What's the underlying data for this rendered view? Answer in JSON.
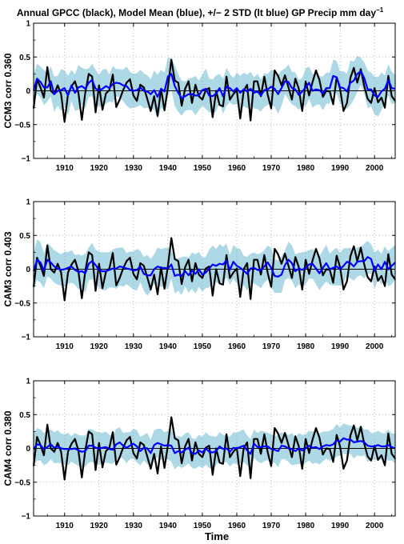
{
  "figure": {
    "title": "Annual GPCC (black), Model Mean (blue), +/− 2 STD (lt blue) GP Precip mm day",
    "title_sup": "−1",
    "xlabel": "Time"
  },
  "colors": {
    "observed": "#000000",
    "model_mean": "#0000ff",
    "spread": "#add8e6",
    "grid": "#a0a0a0",
    "zero_line": "#000000"
  },
  "chart_data": [
    {
      "type": "line",
      "ylabel": "CCM3 corr 0.360",
      "xlim": [
        1901,
        2006
      ],
      "ylim": [
        -1,
        1
      ],
      "xticks": [
        1910,
        1920,
        1930,
        1940,
        1950,
        1960,
        1970,
        1980,
        1990,
        2000
      ],
      "yticks": [
        -1,
        -0.5,
        0,
        0.5,
        1
      ],
      "ytick_labels": [
        "−1",
        "−0.5",
        "0",
        "0.5",
        "1"
      ],
      "grid": true,
      "x_start": 1901,
      "series": [
        {
          "name": "GPCC",
          "values": [
            -0.26,
            0.17,
            0.05,
            -0.1,
            0.35,
            0.0,
            -0.05,
            0.08,
            -0.05,
            -0.46,
            -0.05,
            0.07,
            0.14,
            -0.03,
            -0.43,
            -0.03,
            0.25,
            0.21,
            -0.32,
            0.08,
            -0.28,
            -0.04,
            0.01,
            0.24,
            -0.24,
            -0.13,
            0.01,
            0.12,
            0.17,
            -0.07,
            -0.15,
            0.09,
            0.05,
            -0.12,
            -0.3,
            -0.08,
            -0.37,
            0.03,
            -0.29,
            0.05,
            0.46,
            0.15,
            0.12,
            -0.22,
            0.03,
            0.14,
            -0.18,
            0.09,
            -0.08,
            -0.13,
            0.01,
            0.04,
            -0.39,
            0.0,
            -0.21,
            -0.23,
            0.21,
            -0.13,
            -0.05,
            0.01,
            -0.41,
            0.0,
            0.09,
            -0.44,
            0.14,
            0.14,
            -0.08,
            0.21,
            -0.06,
            -0.26,
            0.3,
            0.22,
            0.08,
            0.23,
            0.05,
            -0.13,
            0.18,
            0.03,
            -0.3,
            0.14,
            -0.07,
            0.13,
            0.3,
            0.16,
            -0.09,
            0.0,
            -0.01,
            -0.2,
            0.2,
            0.03,
            -0.3,
            -0.18,
            0.19,
            0.34,
            0.12,
            0.32,
            0.07,
            -0.12,
            -0.18,
            0.04,
            -0.17,
            -0.1,
            -0.25,
            0.22,
            -0.08,
            -0.15
          ]
        },
        {
          "name": "Model Mean",
          "values": [
            0.01,
            0.18,
            0.13,
            0.05,
            0.05,
            0.14,
            -0.05,
            0.0,
            0.01,
            0.04,
            -0.07,
            0.08,
            -0.03,
            0.05,
            0.07,
            0.03,
            0.12,
            0.16,
            0.03,
            0.01,
            0.03,
            0.07,
            0.04,
            0.1,
            0.12,
            0.11,
            0.08,
            0.07,
            0.01,
            0.0,
            0.01,
            0.05,
            0.0,
            -0.01,
            -0.05,
            0.01,
            -0.09,
            0.03,
            -0.01,
            0.21,
            0.25,
            0.07,
            -0.03,
            -0.11,
            -0.08,
            -0.05,
            -0.05,
            -0.07,
            -0.07,
            0.01,
            0.03,
            -0.07,
            -0.08,
            -0.04,
            0.04,
            -0.08,
            0.06,
            0.04,
            -0.01,
            0.04,
            -0.03,
            0.02,
            -0.01,
            0.03,
            -0.03,
            -0.01,
            -0.07,
            0.01,
            0.02,
            0.06,
            0.03,
            -0.05,
            0.04,
            0.14,
            0.13,
            0.04,
            0.02,
            -0.06,
            -0.01,
            0.05,
            0.12,
            0.0,
            0.02,
            0.01,
            -0.04,
            0.04,
            0.04,
            0.22,
            0.2,
            0.05,
            0.04,
            -0.01,
            0.12,
            0.15,
            0.25,
            0.29,
            0.19,
            0.02,
            0.02,
            -0.07,
            -0.09,
            -0.01,
            0.03,
            0.16,
            0.04,
            0.03
          ]
        }
      ],
      "band_halfwidth": [
        0.23,
        0.22,
        0.23,
        0.26,
        0.21,
        0.22,
        0.26,
        0.22,
        0.31,
        0.26,
        0.29,
        0.23,
        0.27,
        0.33,
        0.27,
        0.29,
        0.21,
        0.24,
        0.28,
        0.23,
        0.28,
        0.26,
        0.2,
        0.27,
        0.2,
        0.21,
        0.23,
        0.29,
        0.27,
        0.25,
        0.25,
        0.26,
        0.26,
        0.24,
        0.22,
        0.29,
        0.33,
        0.28,
        0.28,
        0.28,
        0.23,
        0.3,
        0.28,
        0.26,
        0.22,
        0.23,
        0.24,
        0.29,
        0.22,
        0.23,
        0.3,
        0.25,
        0.25,
        0.27,
        0.21,
        0.26,
        0.28,
        0.21,
        0.2,
        0.23,
        0.25,
        0.25,
        0.25,
        0.25,
        0.23,
        0.26,
        0.24,
        0.25,
        0.23,
        0.25,
        0.27,
        0.29,
        0.26,
        0.19,
        0.26,
        0.24,
        0.25,
        0.22,
        0.2,
        0.28,
        0.24,
        0.25,
        0.23,
        0.21,
        0.25,
        0.23,
        0.23,
        0.24,
        0.24,
        0.24,
        0.25,
        0.26,
        0.33,
        0.28,
        0.27,
        0.2,
        0.23,
        0.28,
        0.25,
        0.28,
        0.29,
        0.28,
        0.2,
        0.23,
        0.24,
        0.21
      ]
    },
    {
      "type": "line",
      "ylabel": "CAM3 corr 0.403",
      "xlim": [
        1901,
        2006
      ],
      "ylim": [
        -1,
        1
      ],
      "xticks": [
        1910,
        1920,
        1930,
        1940,
        1950,
        1960,
        1970,
        1980,
        1990,
        2000
      ],
      "yticks": [
        -1,
        -0.5,
        0,
        0.5,
        1
      ],
      "ytick_labels": [
        "−1",
        "−0.5",
        "0",
        "0.5",
        "1"
      ],
      "grid": true,
      "x_start": 1901,
      "series": [
        {
          "name": "GPCC",
          "values": [
            -0.26,
            0.17,
            0.05,
            -0.1,
            0.35,
            0.0,
            -0.05,
            0.08,
            -0.05,
            -0.46,
            -0.05,
            0.07,
            0.14,
            -0.03,
            -0.43,
            -0.03,
            0.25,
            0.21,
            -0.32,
            0.08,
            -0.28,
            -0.04,
            0.01,
            0.24,
            -0.24,
            -0.13,
            0.01,
            0.12,
            0.17,
            -0.07,
            -0.15,
            0.09,
            0.05,
            -0.12,
            -0.3,
            -0.08,
            -0.37,
            0.03,
            -0.29,
            0.05,
            0.46,
            0.15,
            0.12,
            -0.22,
            0.03,
            0.14,
            -0.18,
            0.09,
            -0.08,
            -0.13,
            0.01,
            0.04,
            -0.39,
            0.0,
            -0.21,
            -0.23,
            0.21,
            -0.13,
            -0.05,
            0.01,
            -0.41,
            0.0,
            0.09,
            -0.44,
            0.14,
            0.14,
            -0.08,
            0.21,
            -0.06,
            -0.26,
            0.3,
            0.22,
            0.08,
            0.23,
            0.05,
            -0.13,
            0.18,
            0.03,
            -0.3,
            0.14,
            -0.07,
            0.13,
            0.3,
            0.16,
            -0.09,
            0.0,
            -0.01,
            -0.2,
            0.2,
            0.03,
            -0.3,
            -0.18,
            0.19,
            0.34,
            0.12,
            0.32,
            0.07,
            -0.12,
            -0.18,
            0.04,
            -0.17,
            -0.1,
            -0.25,
            0.22,
            -0.08,
            -0.15
          ]
        },
        {
          "name": "Model Mean",
          "values": [
            -0.03,
            0.14,
            0.1,
            -0.02,
            0.14,
            0.1,
            0.04,
            0.01,
            -0.01,
            0.0,
            0.02,
            0.04,
            -0.01,
            -0.04,
            -0.03,
            -0.06,
            0.08,
            0.12,
            0.06,
            -0.01,
            -0.03,
            -0.03,
            -0.01,
            0.01,
            0.01,
            0.04,
            0.03,
            0.01,
            0.0,
            -0.02,
            -0.01,
            0.04,
            -0.07,
            -0.09,
            -0.09,
            0.0,
            0.04,
            0.02,
            0.02,
            0.01,
            0.07,
            -0.1,
            -0.08,
            -0.1,
            -0.03,
            -0.09,
            -0.02,
            -0.07,
            0.0,
            -0.08,
            -0.05,
            0.01,
            0.07,
            0.05,
            0.08,
            0.07,
            0.13,
            -0.01,
            0.11,
            0.05,
            0.02,
            -0.02,
            -0.07,
            0.01,
            0.02,
            -0.01,
            -0.02,
            0.04,
            0.1,
            0.02,
            -0.1,
            -0.11,
            -0.08,
            0.06,
            0.14,
            0.09,
            -0.03,
            0.01,
            -0.01,
            0.02,
            0.07,
            0.08,
            0.01,
            -0.06,
            0.02,
            0.09,
            0.0,
            0.02,
            0.04,
            0.0,
            0.05,
            0.11,
            0.09,
            0.04,
            0.11,
            0.12,
            0.12,
            0.18,
            0.15,
            -0.02,
            0.07,
            0.0,
            0.11,
            0.0,
            0.05,
            0.1
          ]
        }
      ],
      "band_halfwidth": [
        0.28,
        0.3,
        0.3,
        0.26,
        0.25,
        0.24,
        0.24,
        0.24,
        0.23,
        0.26,
        0.23,
        0.24,
        0.22,
        0.26,
        0.23,
        0.29,
        0.24,
        0.27,
        0.23,
        0.27,
        0.28,
        0.28,
        0.26,
        0.28,
        0.3,
        0.28,
        0.29,
        0.23,
        0.26,
        0.28,
        0.31,
        0.23,
        0.25,
        0.3,
        0.24,
        0.22,
        0.28,
        0.28,
        0.29,
        0.31,
        0.21,
        0.26,
        0.24,
        0.28,
        0.22,
        0.26,
        0.27,
        0.29,
        0.26,
        0.25,
        0.23,
        0.28,
        0.28,
        0.25,
        0.29,
        0.26,
        0.25,
        0.22,
        0.25,
        0.26,
        0.28,
        0.22,
        0.25,
        0.22,
        0.23,
        0.23,
        0.26,
        0.24,
        0.25,
        0.29,
        0.25,
        0.24,
        0.27,
        0.22,
        0.27,
        0.26,
        0.25,
        0.23,
        0.26,
        0.24,
        0.21,
        0.22,
        0.23,
        0.25,
        0.26,
        0.27,
        0.23,
        0.26,
        0.28,
        0.24,
        0.26,
        0.2,
        0.23,
        0.21,
        0.22,
        0.21,
        0.26,
        0.24,
        0.22,
        0.27,
        0.22,
        0.23,
        0.23,
        0.26,
        0.27,
        0.26
      ]
    },
    {
      "type": "line",
      "ylabel": "CAM4 corr 0.380",
      "xlim": [
        1901,
        2006
      ],
      "ylim": [
        -1,
        1
      ],
      "xticks": [
        1910,
        1920,
        1930,
        1940,
        1950,
        1960,
        1970,
        1980,
        1990,
        2000
      ],
      "yticks": [
        -1,
        -0.5,
        0,
        0.5,
        1
      ],
      "ytick_labels": [
        "−1",
        "−0.5",
        "0",
        "0.5",
        "1"
      ],
      "grid": true,
      "x_start": 1901,
      "series": [
        {
          "name": "GPCC",
          "values": [
            -0.26,
            0.17,
            0.05,
            -0.1,
            0.35,
            0.0,
            -0.05,
            0.08,
            -0.05,
            -0.46,
            -0.05,
            0.07,
            0.14,
            -0.03,
            -0.43,
            -0.03,
            0.25,
            0.21,
            -0.32,
            0.08,
            -0.28,
            -0.04,
            0.01,
            0.24,
            -0.24,
            -0.13,
            0.01,
            0.12,
            0.17,
            -0.07,
            -0.15,
            0.09,
            0.05,
            -0.12,
            -0.3,
            -0.08,
            -0.37,
            0.03,
            -0.29,
            0.05,
            0.46,
            0.15,
            0.12,
            -0.22,
            0.03,
            0.14,
            -0.18,
            0.09,
            -0.08,
            -0.13,
            0.01,
            0.04,
            -0.39,
            0.0,
            -0.21,
            -0.23,
            0.21,
            -0.13,
            -0.05,
            0.01,
            -0.41,
            0.0,
            0.09,
            -0.44,
            0.14,
            0.14,
            -0.08,
            0.21,
            -0.06,
            -0.26,
            0.3,
            0.22,
            0.08,
            0.23,
            0.05,
            -0.13,
            0.18,
            0.03,
            -0.3,
            0.14,
            -0.07,
            0.13,
            0.3,
            0.16,
            -0.09,
            0.0,
            -0.01,
            -0.2,
            0.2,
            0.03,
            -0.3,
            -0.18,
            0.19,
            0.34,
            0.12,
            0.32,
            0.07,
            -0.12,
            -0.18,
            0.04,
            -0.17,
            -0.1,
            -0.25,
            0.22,
            -0.08,
            -0.15
          ]
        },
        {
          "name": "Model Mean",
          "values": [
            -0.01,
            0.06,
            0.05,
            -0.01,
            0.02,
            0.06,
            0.01,
            0.03,
            0.0,
            -0.01,
            -0.01,
            -0.01,
            0.0,
            -0.03,
            -0.05,
            -0.04,
            0.04,
            0.04,
            0.01,
            0.0,
            0.01,
            0.02,
            -0.01,
            -0.02,
            0.06,
            0.09,
            0.04,
            0.01,
            0.04,
            0.07,
            0.03,
            -0.04,
            0.01,
            0.0,
            -0.07,
            0.05,
            0.08,
            0.06,
            0.04,
            0.05,
            0.04,
            -0.07,
            -0.04,
            -0.06,
            -0.02,
            0.01,
            -0.07,
            -0.08,
            -0.03,
            -0.06,
            0.0,
            -0.05,
            -0.06,
            -0.04,
            0.03,
            -0.01,
            0.0,
            -0.05,
            0.01,
            0.0,
            0.02,
            0.04,
            -0.03,
            -0.08,
            0.07,
            0.02,
            0.02,
            0.03,
            0.03,
            -0.01,
            -0.02,
            -0.04,
            0.04,
            0.03,
            0.0,
            -0.01,
            -0.04,
            0.0,
            -0.03,
            0.0,
            0.04,
            0.01,
            0.02,
            -0.01,
            0.03,
            0.05,
            0.04,
            0.06,
            0.12,
            0.1,
            0.15,
            0.13,
            0.13,
            0.09,
            0.1,
            0.11,
            0.09,
            0.04,
            0.03,
            0.03,
            0.05,
            0.03,
            0.03,
            0.05,
            0.02,
            0.0
          ]
        }
      ],
      "band_halfwidth": [
        0.24,
        0.24,
        0.23,
        0.24,
        0.24,
        0.22,
        0.23,
        0.24,
        0.22,
        0.22,
        0.24,
        0.19,
        0.23,
        0.23,
        0.24,
        0.23,
        0.25,
        0.24,
        0.24,
        0.24,
        0.22,
        0.23,
        0.21,
        0.21,
        0.23,
        0.22,
        0.19,
        0.23,
        0.2,
        0.22,
        0.24,
        0.21,
        0.19,
        0.23,
        0.2,
        0.22,
        0.21,
        0.23,
        0.2,
        0.21,
        0.24,
        0.24,
        0.22,
        0.23,
        0.24,
        0.23,
        0.22,
        0.22,
        0.23,
        0.23,
        0.24,
        0.24,
        0.24,
        0.21,
        0.21,
        0.21,
        0.2,
        0.22,
        0.23,
        0.23,
        0.24,
        0.24,
        0.22,
        0.22,
        0.21,
        0.21,
        0.24,
        0.22,
        0.2,
        0.22,
        0.19,
        0.24,
        0.2,
        0.19,
        0.2,
        0.24,
        0.2,
        0.23,
        0.23,
        0.21,
        0.22,
        0.24,
        0.23,
        0.23,
        0.22,
        0.2,
        0.22,
        0.23,
        0.24,
        0.21,
        0.22,
        0.22,
        0.21,
        0.24,
        0.2,
        0.23,
        0.19,
        0.24,
        0.2,
        0.2,
        0.21,
        0.2,
        0.19,
        0.23,
        0.2,
        0.22
      ]
    }
  ]
}
